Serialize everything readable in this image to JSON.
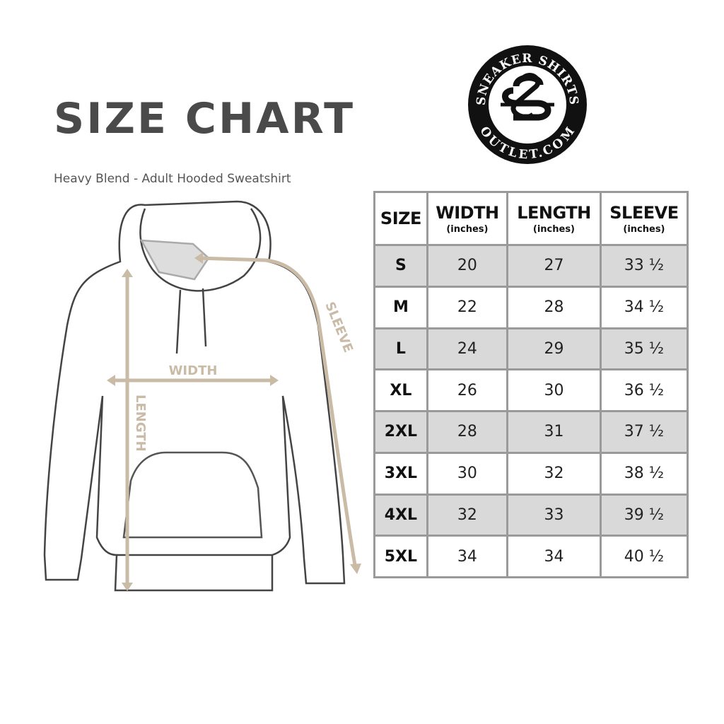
{
  "title": "SIZE CHART",
  "subtitle": "Heavy Blend - Adult Hooded Sweatshirt",
  "logo": {
    "top_text": "SNEAKER SHIRTS",
    "bottom_text": "OUTLET.COM",
    "monogram": "SS"
  },
  "diagram": {
    "width_label": "WIDTH",
    "length_label": "LENGTH",
    "sleeve_label": "SLEEVE",
    "measure_color": "#c9bba6",
    "outline_color": "#444444"
  },
  "table": {
    "headers": [
      {
        "label": "SIZE",
        "unit": ""
      },
      {
        "label": "WIDTH",
        "unit": "(inches)"
      },
      {
        "label": "LENGTH",
        "unit": "(inches)"
      },
      {
        "label": "SLEEVE",
        "unit": "(inches)"
      }
    ],
    "rows": [
      [
        "S",
        "20",
        "27",
        "33 ½"
      ],
      [
        "M",
        "22",
        "28",
        "34 ½"
      ],
      [
        "L",
        "24",
        "29",
        "35 ½"
      ],
      [
        "XL",
        "26",
        "30",
        "36 ½"
      ],
      [
        "2XL",
        "28",
        "31",
        "37 ½"
      ],
      [
        "3XL",
        "30",
        "32",
        "38 ½"
      ],
      [
        "4XL",
        "32",
        "33",
        "39 ½"
      ],
      [
        "5XL",
        "34",
        "34",
        "40 ½"
      ]
    ],
    "stripe_color": "#d9d9d9",
    "border_color": "#9a9a9a"
  }
}
